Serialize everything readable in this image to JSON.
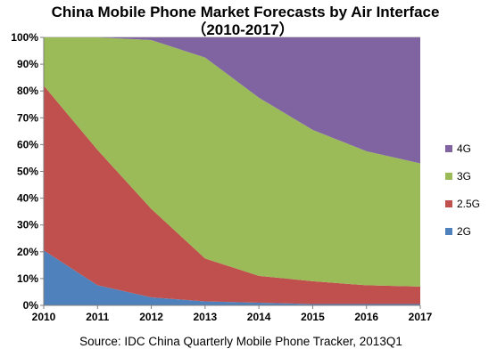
{
  "chart_data": {
    "type": "area",
    "stacked": "percent",
    "title": "China Mobile Phone Market Forecasts by Air Interface",
    "subtitle": "（2010-2017）",
    "source": "Source: IDC China Quarterly Mobile Phone Tracker, 2013Q1",
    "xlabel": "",
    "ylabel": "",
    "x": [
      "2010",
      "2011",
      "2012",
      "2013",
      "2014",
      "2015",
      "2016",
      "2017"
    ],
    "ylim": [
      0,
      100
    ],
    "yticks": [
      "0%",
      "10%",
      "20%",
      "30%",
      "40%",
      "50%",
      "60%",
      "70%",
      "80%",
      "90%",
      "100%"
    ],
    "grid": true,
    "legend_position": "right",
    "series": [
      {
        "name": "2G",
        "color": "#4F81BD",
        "values": [
          20.5,
          7.5,
          3.0,
          1.5,
          1.0,
          0.5,
          0.5,
          0.5
        ]
      },
      {
        "name": "2.5G",
        "color": "#C0504D",
        "values": [
          61.5,
          50.5,
          33.0,
          16.0,
          10.0,
          8.5,
          7.0,
          6.5
        ]
      },
      {
        "name": "3G",
        "color": "#9BBB59",
        "values": [
          18.0,
          42.0,
          63.0,
          75.0,
          66.5,
          56.5,
          50.0,
          46.0
        ]
      },
      {
        "name": "4G",
        "color": "#8064A2",
        "values": [
          0.0,
          0.0,
          1.0,
          7.5,
          22.5,
          34.5,
          42.5,
          47.0
        ]
      }
    ],
    "legend_order": [
      "4G",
      "3G",
      "2.5G",
      "2G"
    ]
  }
}
